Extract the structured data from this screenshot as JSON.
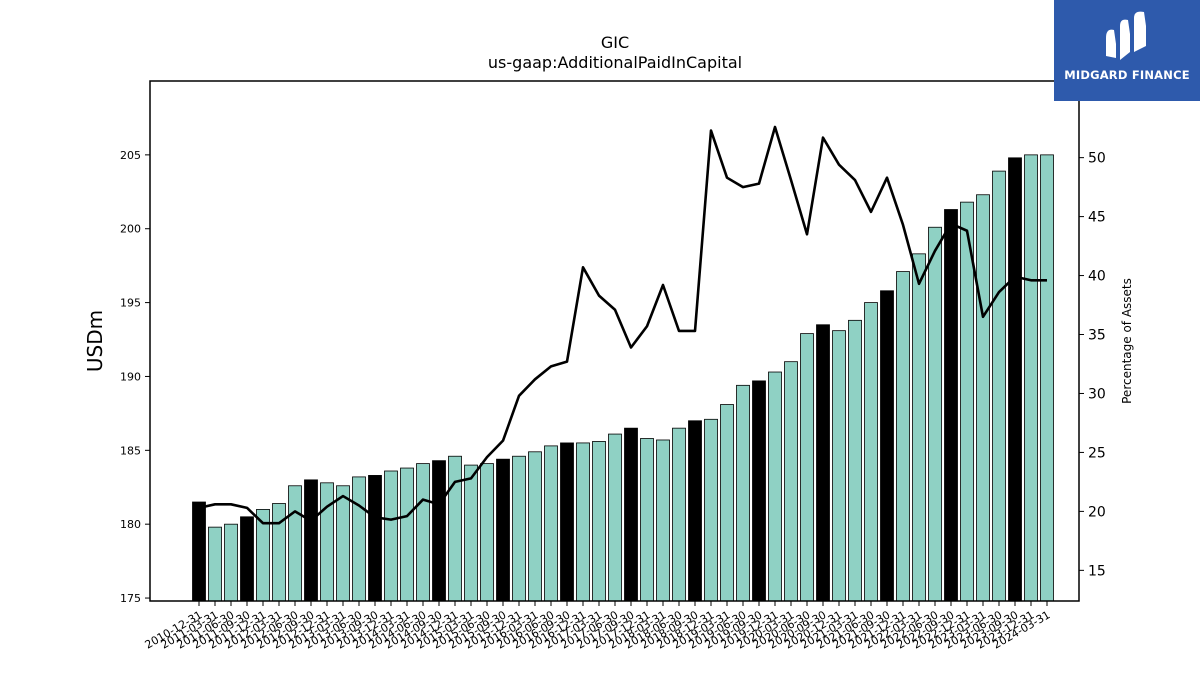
{
  "chart_data": {
    "type": "bar",
    "title": "GIC",
    "subtitle": "us-gaap:AdditionalPaidInCapital",
    "xlabel": "",
    "ylabel": "USDm",
    "y2label": "Percentage of Assets",
    "ylim": [
      174.8,
      210
    ],
    "y2lim": [
      12.4,
      56.5
    ],
    "yticks": [
      175,
      180,
      185,
      190,
      195,
      200,
      205
    ],
    "y2ticks": [
      15,
      20,
      25,
      30,
      35,
      40,
      45,
      50
    ],
    "grid": false,
    "colors": {
      "bar": "#8fd1c4",
      "bar_highlight": "#000000",
      "line": "#000000",
      "edge": "#000000"
    },
    "categories": [
      "2010-12-31",
      "2011-03-31",
      "2011-06-30",
      "2011-09-30",
      "2011-12-31",
      "2012-03-31",
      "2012-06-30",
      "2012-09-30",
      "2012-12-31",
      "2013-03-31",
      "2013-06-30",
      "2013-09-30",
      "2013-12-31",
      "2014-03-31",
      "2014-06-30",
      "2014-09-30",
      "2014-12-31",
      "2015-03-31",
      "2015-06-30",
      "2015-09-30",
      "2015-12-31",
      "2016-03-31",
      "2016-06-30",
      "2016-09-30",
      "2016-12-31",
      "2017-03-31",
      "2017-06-30",
      "2017-09-30",
      "2017-12-31",
      "2018-03-31",
      "2018-06-30",
      "2018-09-30",
      "2018-12-31",
      "2019-03-31",
      "2019-06-30",
      "2019-09-30",
      "2019-12-31",
      "2020-03-31",
      "2020-06-30",
      "2020-09-30",
      "2020-12-31",
      "2021-03-31",
      "2021-06-30",
      "2021-09-30",
      "2021-12-31",
      "2022-03-31",
      "2022-06-30",
      "2022-09-30",
      "2022-12-31",
      "2023-03-31",
      "2023-06-30",
      "2023-09-30",
      "2023-12-31",
      "2024-03-31"
    ],
    "series": [
      {
        "type": "bar",
        "axis": "left",
        "values": [
          181.5,
          179.8,
          180.0,
          180.5,
          181.0,
          181.4,
          182.6,
          183.0,
          182.8,
          182.6,
          183.2,
          183.3,
          183.6,
          183.8,
          184.1,
          184.3,
          184.6,
          184.0,
          184.1,
          184.4,
          184.6,
          184.9,
          185.3,
          185.5,
          185.5,
          185.6,
          186.1,
          186.5,
          185.8,
          185.7,
          186.5,
          187.0,
          187.1,
          188.1,
          189.4,
          189.7,
          190.3,
          191.0,
          192.9,
          193.5,
          193.1,
          193.8,
          195.0,
          195.8,
          197.1,
          198.3,
          200.1,
          201.3,
          201.8,
          202.3,
          203.9,
          204.8,
          205.0,
          205.0
        ],
        "highlight": [
          true,
          false,
          false,
          true,
          false,
          false,
          false,
          true,
          false,
          false,
          false,
          true,
          false,
          false,
          false,
          true,
          false,
          false,
          false,
          true,
          false,
          false,
          false,
          true,
          false,
          false,
          false,
          true,
          false,
          false,
          false,
          true,
          false,
          false,
          false,
          true,
          false,
          false,
          false,
          true,
          false,
          false,
          false,
          true,
          false,
          false,
          false,
          true,
          false,
          false,
          false,
          true,
          false,
          false
        ]
      },
      {
        "type": "line",
        "axis": "right",
        "values": [
          20.3,
          20.6,
          20.6,
          20.3,
          19.0,
          19.0,
          20.0,
          19.2,
          20.4,
          21.3,
          20.5,
          19.5,
          19.3,
          19.6,
          21.0,
          20.6,
          22.5,
          22.8,
          24.6,
          26.0,
          29.8,
          31.2,
          32.3,
          32.7,
          40.7,
          38.3,
          37.1,
          33.9,
          35.7,
          39.2,
          35.3,
          35.3,
          52.3,
          48.3,
          47.5,
          47.8,
          52.6,
          48.1,
          43.5,
          51.7,
          49.4,
          48.1,
          45.4,
          48.3,
          44.3,
          39.3,
          42.1,
          44.4,
          43.8,
          36.5,
          38.6,
          39.9,
          39.6,
          39.6
        ]
      }
    ]
  },
  "logo": {
    "text": "MIDGARD FINANCE"
  }
}
